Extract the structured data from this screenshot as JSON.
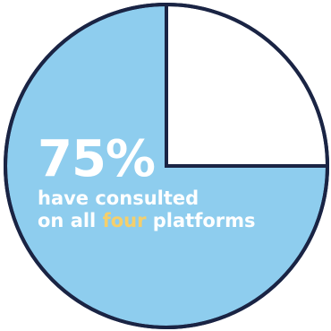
{
  "chart_data": {
    "type": "pie",
    "slices": [
      {
        "value": 75,
        "color": "#8ecdee"
      },
      {
        "value": 25,
        "color": "#ffffff"
      }
    ],
    "border_color": "#1a2444",
    "start_angle_deg": -90,
    "direction": "counterclockwise"
  },
  "callout": {
    "percent": "75%",
    "line1": "have consulted",
    "line2_pre": "on all ",
    "line2_highlight": "four",
    "line2_post": " platforms",
    "text_color": "#ffffff",
    "highlight_color": "#f5cf6b"
  }
}
